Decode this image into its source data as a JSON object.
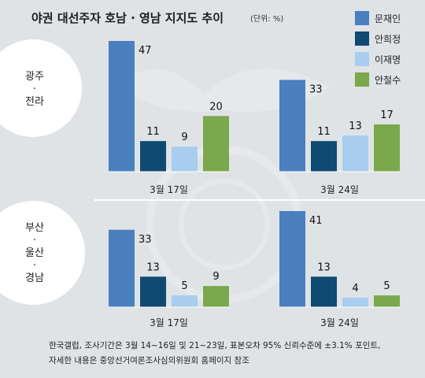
{
  "title": "야권 대선주자 호남 · 영남 지지도 추이",
  "unit": "(단위: %)",
  "colors": {
    "문재인": "#4a7fc0",
    "안희정": "#0f4a72",
    "이재명": "#a8cdee",
    "안철수": "#7aa84a"
  },
  "legend": [
    "문재인",
    "안희정",
    "이재명",
    "안철수"
  ],
  "chart_data": [
    {
      "type": "bar",
      "region": [
        "광주",
        "·",
        "전라"
      ],
      "categories": [
        "3월 17일",
        "3월 24일"
      ],
      "series": [
        {
          "name": "문재인",
          "values": [
            47,
            33
          ]
        },
        {
          "name": "안희정",
          "values": [
            11,
            11
          ]
        },
        {
          "name": "이재명",
          "values": [
            9,
            13
          ]
        },
        {
          "name": "안철수",
          "values": [
            20,
            17
          ]
        }
      ],
      "ylim": [
        0,
        47
      ]
    },
    {
      "type": "bar",
      "region": [
        "부산",
        "·",
        "울산",
        "·",
        "경남"
      ],
      "categories": [
        "3월 17일",
        "3월 24일"
      ],
      "series": [
        {
          "name": "문재인",
          "values": [
            33,
            41
          ]
        },
        {
          "name": "안희정",
          "values": [
            13,
            13
          ]
        },
        {
          "name": "이재명",
          "values": [
            5,
            4
          ]
        },
        {
          "name": "안철수",
          "values": [
            9,
            5
          ]
        }
      ],
      "ylim": [
        0,
        41
      ]
    }
  ],
  "footnote": [
    "한국갤럽, 조사기간은 3월 14~16일 및 21~23일, 표본오차 95% 신뢰수준에 ±3.1% 포인트,",
    "자세한 내용은 중앙선거여론조사심의위원회 홈페이지 참조"
  ]
}
